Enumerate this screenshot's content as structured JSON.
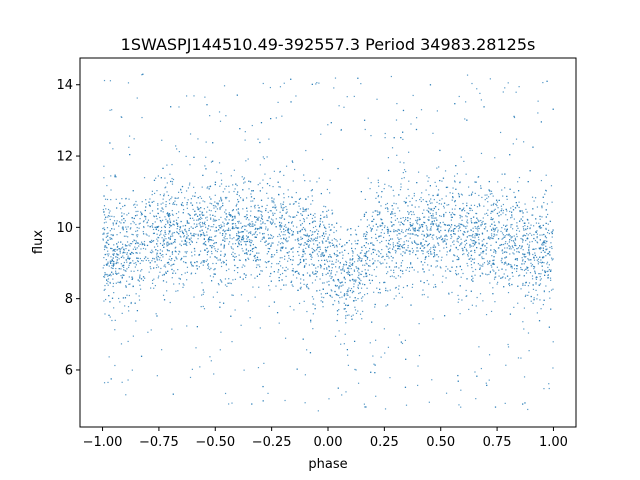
{
  "chart_data": {
    "type": "scatter",
    "title": "1SWASPJ144510.49-392557.3 Period 34983.28125s",
    "xlabel": "phase",
    "ylabel": "flux",
    "xlim": [
      -1.1,
      1.1
    ],
    "ylim": [
      4.4,
      14.75
    ],
    "x_ticks": [
      "−1.00",
      "−0.75",
      "−0.50",
      "−0.25",
      "0.00",
      "0.25",
      "0.50",
      "0.75",
      "1.00"
    ],
    "x_tick_values": [
      -1.0,
      -0.75,
      -0.5,
      -0.25,
      0.0,
      0.25,
      0.5,
      0.75,
      1.0
    ],
    "y_ticks": [
      "6",
      "8",
      "10",
      "12",
      "14"
    ],
    "y_tick_values": [
      6,
      8,
      10,
      12,
      14
    ],
    "grid": false,
    "legend": "none",
    "point_color": "#1f77b4",
    "x_range": [
      -1.0,
      1.0
    ],
    "y_range": [
      4.85,
      14.3
    ],
    "phase_profile": [
      {
        "phase": -1.0,
        "median_flux": 9.3
      },
      {
        "phase": -0.9,
        "median_flux": 9.3
      },
      {
        "phase": -0.75,
        "median_flux": 9.8
      },
      {
        "phase": -0.5,
        "median_flux": 9.9
      },
      {
        "phase": -0.25,
        "median_flux": 9.9
      },
      {
        "phase": 0.0,
        "median_flux": 9.3
      },
      {
        "phase": 0.07,
        "median_flux": 8.3
      },
      {
        "phase": 0.25,
        "median_flux": 9.8
      },
      {
        "phase": 0.5,
        "median_flux": 9.9
      },
      {
        "phase": 0.75,
        "median_flux": 9.7
      },
      {
        "phase": 0.95,
        "median_flux": 9.2
      },
      {
        "phase": 1.0,
        "median_flux": 9.3
      }
    ]
  }
}
